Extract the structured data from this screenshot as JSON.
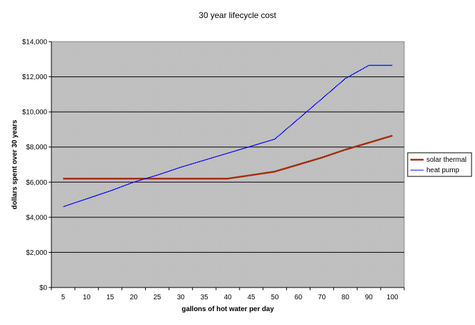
{
  "chart_data": {
    "type": "line",
    "title": "30 year lifecycle cost",
    "xlabel": "gallons of hot water per day",
    "ylabel": "dollars spent over 30 years",
    "categories": [
      "5",
      "10",
      "15",
      "20",
      "25",
      "30",
      "35",
      "40",
      "45",
      "50",
      "60",
      "70",
      "80",
      "90",
      "100"
    ],
    "y_ticks": [
      "$0",
      "$2,000",
      "$4,000",
      "$6,000",
      "$8,000",
      "$10,000",
      "$12,000",
      "$14,000"
    ],
    "ylim": [
      0,
      14000
    ],
    "grid": true,
    "legend_position": "right",
    "plot_background": "#c0c0c0",
    "series": [
      {
        "name": "solar thermal",
        "color": "#a0300e",
        "values": [
          6200,
          6200,
          6200,
          6200,
          6200,
          6200,
          6200,
          6200,
          6400,
          6600,
          7000,
          7400,
          7850,
          8250,
          8650
        ]
      },
      {
        "name": "heat pump",
        "color": "#0000ff",
        "values": [
          4600,
          5050,
          5500,
          6000,
          6400,
          6850,
          7250,
          7650,
          8050,
          8450,
          9600,
          10750,
          11900,
          12650,
          12650
        ]
      }
    ]
  }
}
